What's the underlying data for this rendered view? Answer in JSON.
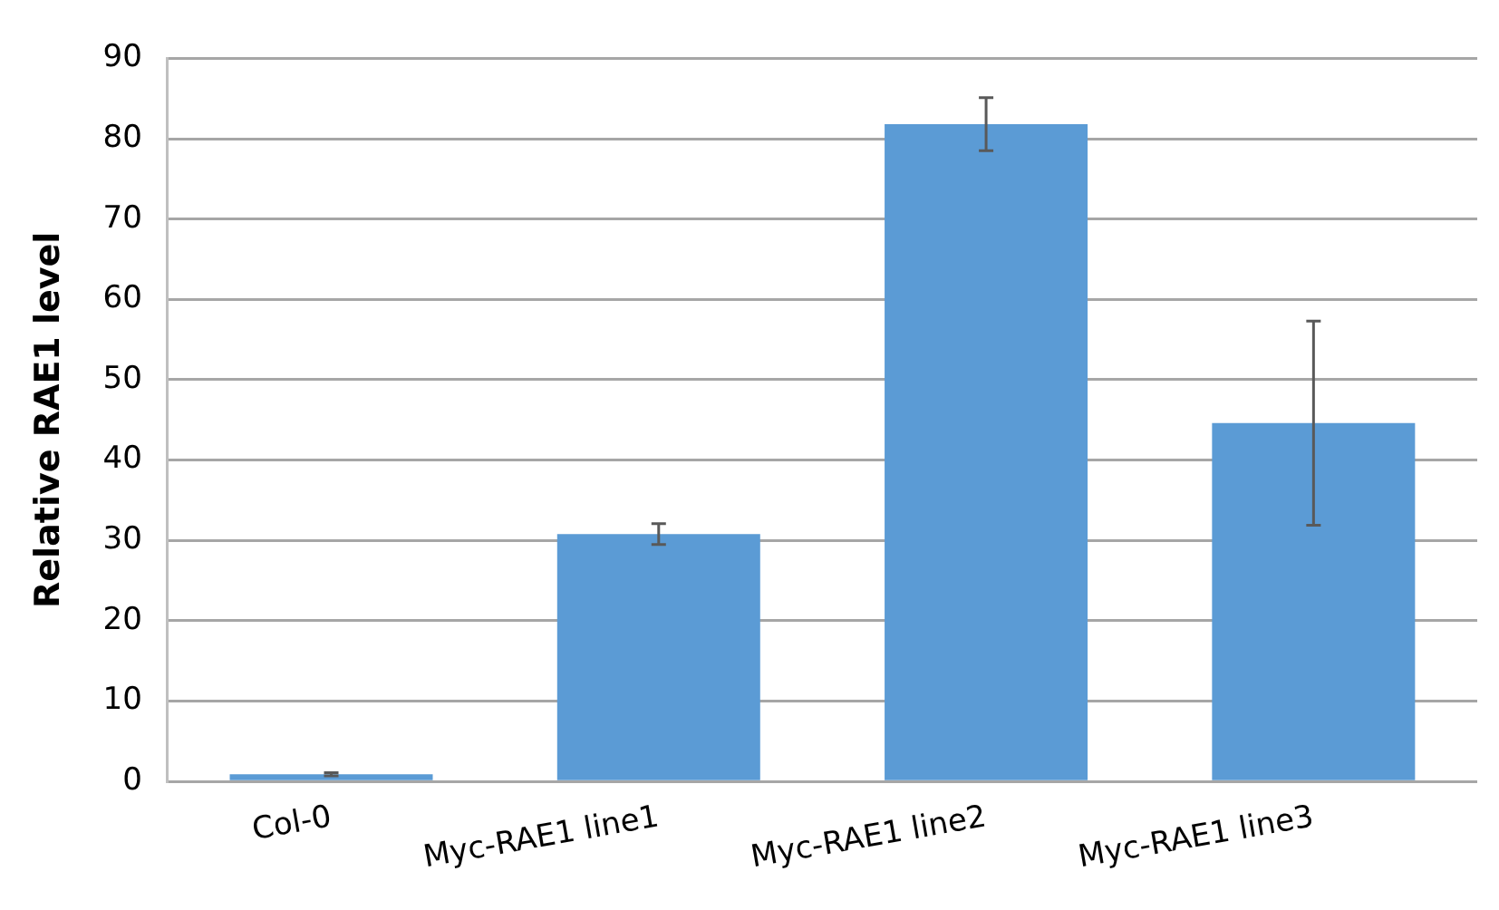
{
  "chart_data": {
    "type": "bar",
    "ylabel": "Relative RAE1 level",
    "categories": [
      "Col-0",
      "Myc-RAE1 line1",
      "Myc-RAE1 line2",
      "Myc-RAE1 line3"
    ],
    "values": [
      0.9,
      30.8,
      81.8,
      44.6
    ],
    "errors": [
      0.2,
      1.3,
      3.3,
      12.7
    ],
    "color": "#5b9bd5",
    "ylim": [
      0,
      90
    ],
    "yticks": [
      0,
      10,
      20,
      30,
      40,
      50,
      60,
      70,
      80,
      90
    ],
    "grid": "y",
    "legend": false
  }
}
